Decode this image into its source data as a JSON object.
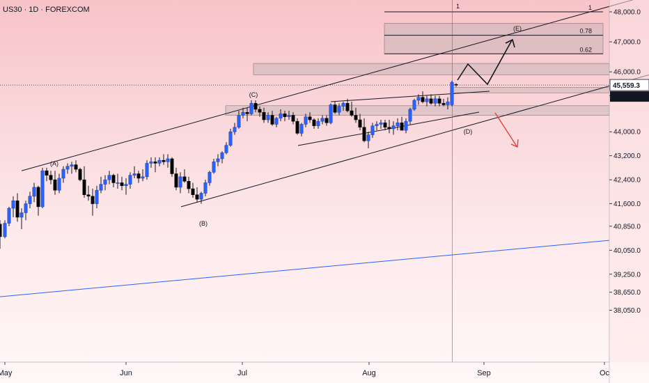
{
  "header": {
    "symbol": "US30 · 1D · FOREXCOM"
  },
  "colors": {
    "bull_body": "#2962ff",
    "bear_body": "#000000",
    "wick": "#131722",
    "trend_line": "#131722",
    "blue_line": "#2962ff",
    "zone_fill": "#9e9e9e",
    "bear_arrow": "#e53935",
    "price_label_bg": "#ffffff",
    "timer_bg": "#131722"
  },
  "chart_data": {
    "type": "candlestick",
    "ylim": [
      37700,
      48350
    ],
    "y_ticks": [
      "48,000.0",
      "47,000.0",
      "46,000.0",
      "45,200.0",
      "44,000.0",
      "43,200.0",
      "42,400.0",
      "41,600.0",
      "40,850.0",
      "40,050.0",
      "39,250.0",
      "38,650.0",
      "38,050.0"
    ],
    "x_ticks": [
      "May",
      "Jun",
      "Jul",
      "Aug",
      "Sep",
      "Oc"
    ],
    "current_price": "45,559.3",
    "countdown": "11:44:29",
    "fib_levels": [
      {
        "label": "1",
        "value": 48000
      },
      {
        "label": "0.78",
        "value": 47220
      },
      {
        "label": "0.62",
        "value": 46600
      }
    ],
    "wave_labels": [
      "(A)",
      "(B)",
      "(C)",
      "(D)",
      "(E)"
    ],
    "vertical_marker_label": "1",
    "zones": [
      [
        46600,
        47620
      ],
      [
        45900,
        46280
      ],
      [
        45300,
        45480
      ],
      [
        44550,
        44870
      ]
    ],
    "candles": [
      [
        0,
        40920,
        41050,
        40100,
        40500
      ],
      [
        7,
        40500,
        41050,
        40450,
        40950
      ],
      [
        13,
        40950,
        41500,
        40850,
        41450
      ],
      [
        19,
        41450,
        41850,
        41150,
        41700
      ],
      [
        25,
        41700,
        41950,
        41000,
        41150
      ],
      [
        31,
        41150,
        41450,
        40750,
        41300
      ],
      [
        37,
        41300,
        41700,
        41050,
        41600
      ],
      [
        43,
        41600,
        42000,
        41450,
        41850
      ],
      [
        49,
        41850,
        42300,
        41650,
        42150
      ],
      [
        55,
        42150,
        42200,
        41200,
        41500
      ],
      [
        61,
        41500,
        42800,
        41450,
        42700
      ],
      [
        67,
        42700,
        42800,
        42350,
        42550
      ],
      [
        73,
        42550,
        42700,
        42250,
        42400
      ],
      [
        79,
        42400,
        42700,
        41900,
        42050
      ],
      [
        85,
        42050,
        42600,
        41950,
        42450
      ],
      [
        91,
        42450,
        42850,
        42300,
        42750
      ],
      [
        97,
        42750,
        42950,
        42600,
        42850
      ],
      [
        103,
        42850,
        43000,
        42600,
        42900
      ],
      [
        109,
        42900,
        43050,
        42650,
        42750
      ],
      [
        115,
        42750,
        42800,
        42350,
        42400
      ],
      [
        121,
        42400,
        42850,
        41800,
        41900
      ],
      [
        127,
        41900,
        42200,
        41700,
        41850
      ],
      [
        133,
        41850,
        42100,
        41200,
        41600
      ],
      [
        139,
        41600,
        42200,
        41450,
        42050
      ],
      [
        145,
        42050,
        42500,
        41950,
        42250
      ],
      [
        151,
        42250,
        42550,
        42050,
        42400
      ],
      [
        157,
        42400,
        42700,
        42250,
        42550
      ],
      [
        163,
        42550,
        42600,
        42150,
        42300
      ],
      [
        169,
        42300,
        42600,
        42100,
        42300
      ],
      [
        175,
        42300,
        42500,
        42050,
        42200
      ],
      [
        181,
        42200,
        42450,
        41900,
        42250
      ],
      [
        187,
        42250,
        42650,
        42100,
        42550
      ],
      [
        193,
        42550,
        42850,
        42450,
        42600
      ],
      [
        199,
        42600,
        42700,
        42300,
        42450
      ],
      [
        205,
        42450,
        42750,
        42350,
        42500
      ],
      [
        211,
        42500,
        43050,
        42400,
        42950
      ],
      [
        217,
        42950,
        43150,
        42800,
        43000
      ],
      [
        223,
        43000,
        43150,
        42650,
        42950
      ],
      [
        229,
        42950,
        43150,
        42850,
        43050
      ],
      [
        235,
        43050,
        43250,
        42900,
        43000
      ],
      [
        241,
        43000,
        43250,
        42800,
        43100
      ],
      [
        247,
        43100,
        43150,
        42500,
        42600
      ],
      [
        253,
        42600,
        42800,
        42050,
        42150
      ],
      [
        259,
        42150,
        42650,
        41950,
        42500
      ],
      [
        265,
        42500,
        42750,
        42300,
        42350
      ],
      [
        271,
        42350,
        42500,
        41950,
        42100
      ],
      [
        277,
        42100,
        42300,
        41800,
        41900
      ],
      [
        283,
        41900,
        42150,
        41650,
        41750
      ],
      [
        289,
        41750,
        42000,
        41600,
        41950
      ],
      [
        295,
        41950,
        42400,
        41850,
        42300
      ],
      [
        301,
        42300,
        42700,
        42200,
        42650
      ],
      [
        307,
        42650,
        43100,
        42600,
        43000
      ],
      [
        313,
        43000,
        43250,
        42850,
        43100
      ],
      [
        319,
        43100,
        43350,
        42950,
        43300
      ],
      [
        325,
        43300,
        43650,
        43250,
        43550
      ],
      [
        331,
        43550,
        44100,
        43500,
        44000
      ],
      [
        337,
        44000,
        44300,
        43900,
        44150
      ],
      [
        343,
        44150,
        44700,
        44100,
        44550
      ],
      [
        349,
        44550,
        44800,
        44450,
        44650
      ],
      [
        355,
        44650,
        44800,
        44350,
        44600
      ],
      [
        361,
        44600,
        45050,
        44550,
        44950
      ],
      [
        367,
        44950,
        45050,
        44650,
        44750
      ],
      [
        373,
        44750,
        44850,
        44500,
        44650
      ],
      [
        379,
        44650,
        44800,
        44300,
        44400
      ],
      [
        385,
        44400,
        44650,
        44300,
        44550
      ],
      [
        391,
        44550,
        44700,
        44200,
        44250
      ],
      [
        397,
        44250,
        44500,
        44150,
        44450
      ],
      [
        403,
        44450,
        44750,
        44350,
        44600
      ],
      [
        409,
        44600,
        44700,
        44350,
        44500
      ],
      [
        415,
        44500,
        44700,
        44400,
        44550
      ],
      [
        421,
        44550,
        44650,
        44250,
        44350
      ],
      [
        427,
        44350,
        44450,
        43900,
        43950
      ],
      [
        433,
        43950,
        44300,
        43850,
        44250
      ],
      [
        439,
        44250,
        44600,
        44150,
        44500
      ],
      [
        445,
        44500,
        44650,
        44300,
        44400
      ],
      [
        451,
        44400,
        44450,
        44100,
        44200
      ],
      [
        457,
        44200,
        44450,
        44100,
        44350
      ],
      [
        463,
        44350,
        44550,
        44250,
        44450
      ],
      [
        469,
        44450,
        44550,
        44200,
        44300
      ],
      [
        475,
        44300,
        44950,
        44250,
        44900
      ],
      [
        481,
        44900,
        45000,
        44600,
        44650
      ],
      [
        487,
        44650,
        44950,
        44550,
        44850
      ],
      [
        493,
        44850,
        45000,
        44700,
        44950
      ],
      [
        499,
        44950,
        45100,
        44650,
        44700
      ],
      [
        505,
        44700,
        45000,
        44500,
        44550
      ],
      [
        511,
        44550,
        44800,
        44300,
        44400
      ],
      [
        517,
        44400,
        44600,
        44050,
        44150
      ],
      [
        523,
        44150,
        44450,
        43650,
        43700
      ],
      [
        529,
        43700,
        44000,
        43450,
        43900
      ],
      [
        535,
        43900,
        44300,
        43800,
        44200
      ],
      [
        541,
        44200,
        44350,
        44050,
        44250
      ],
      [
        547,
        44250,
        44400,
        44100,
        44300
      ],
      [
        553,
        44300,
        44400,
        44050,
        44150
      ],
      [
        559,
        44150,
        44400,
        43950,
        44100
      ],
      [
        565,
        44100,
        44350,
        43900,
        44200
      ],
      [
        571,
        44200,
        44450,
        44050,
        44300
      ],
      [
        577,
        44300,
        44500,
        44150,
        44050
      ],
      [
        583,
        44050,
        44450,
        43950,
        44350
      ],
      [
        589,
        44350,
        44800,
        44250,
        44750
      ],
      [
        595,
        44750,
        45100,
        44700,
        45050
      ],
      [
        601,
        45050,
        45250,
        44900,
        45150
      ],
      [
        607,
        45150,
        45350,
        44950,
        45000
      ],
      [
        613,
        45000,
        45200,
        44850,
        45100
      ],
      [
        619,
        45100,
        45250,
        44900,
        44950
      ],
      [
        625,
        44950,
        45200,
        44850,
        45100
      ],
      [
        631,
        45100,
        45200,
        44850,
        44950
      ],
      [
        637,
        44950,
        45100,
        44850,
        44900
      ],
      [
        643,
        44900,
        45150,
        44750,
        45000
      ],
      [
        649,
        44900,
        45700,
        44850,
        45650
      ],
      [
        655,
        45580,
        45620,
        45500,
        45560
      ]
    ],
    "lines": [
      {
        "name": "upper-channel",
        "x1": 31,
        "y1": 42700,
        "x2": 932,
        "y2": 48550
      },
      {
        "name": "lower-channel",
        "x1": 260,
        "y1": 41500,
        "x2": 932,
        "y2": 45900
      },
      {
        "name": "blue-trendline",
        "x1": 0,
        "y1": 38500,
        "x2": 875,
        "y2": 40380
      }
    ]
  }
}
